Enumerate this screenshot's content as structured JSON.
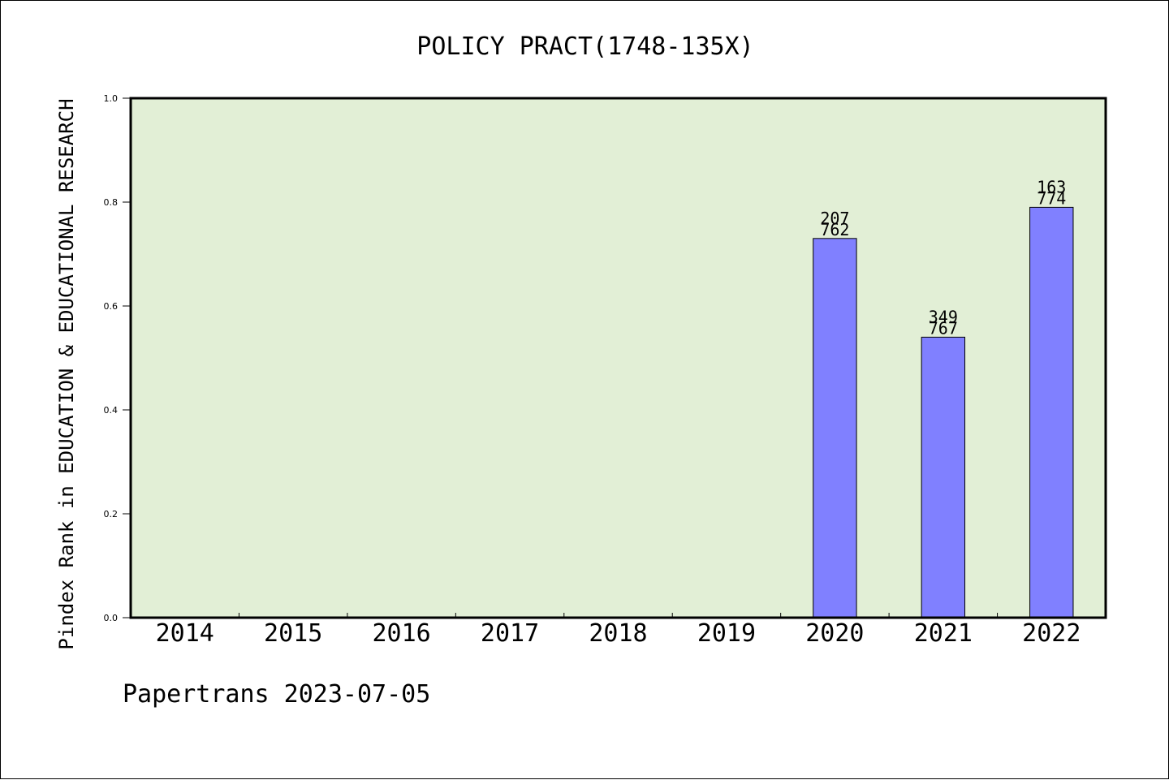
{
  "chart_data": {
    "type": "bar",
    "title": "POLICY PRACT(1748-135X)",
    "ylabel": "Pindex Rank in EDUCATION & EDUCATIONAL RESEARCH",
    "xlabel": "",
    "categories": [
      "2014",
      "2015",
      "2016",
      "2017",
      "2018",
      "2019",
      "2020",
      "2021",
      "2022"
    ],
    "values": [
      null,
      null,
      null,
      null,
      null,
      null,
      0.73,
      0.54,
      0.79
    ],
    "bar_labels": [
      null,
      null,
      null,
      null,
      null,
      null,
      {
        "top": "207",
        "bottom": "762"
      },
      {
        "top": "349",
        "bottom": "767"
      },
      {
        "top": "163",
        "bottom": "774"
      }
    ],
    "ylim": [
      0,
      1.0
    ],
    "yticks": [
      "0.0",
      "0.2",
      "0.4",
      "0.6",
      "0.8",
      "1.0"
    ],
    "grid": false,
    "colors": {
      "plot_background": "#e2efd6",
      "bar_fill": "#8080ff",
      "axis": "#000000"
    }
  },
  "footer": {
    "text": "Papertrans 2023-07-05"
  }
}
